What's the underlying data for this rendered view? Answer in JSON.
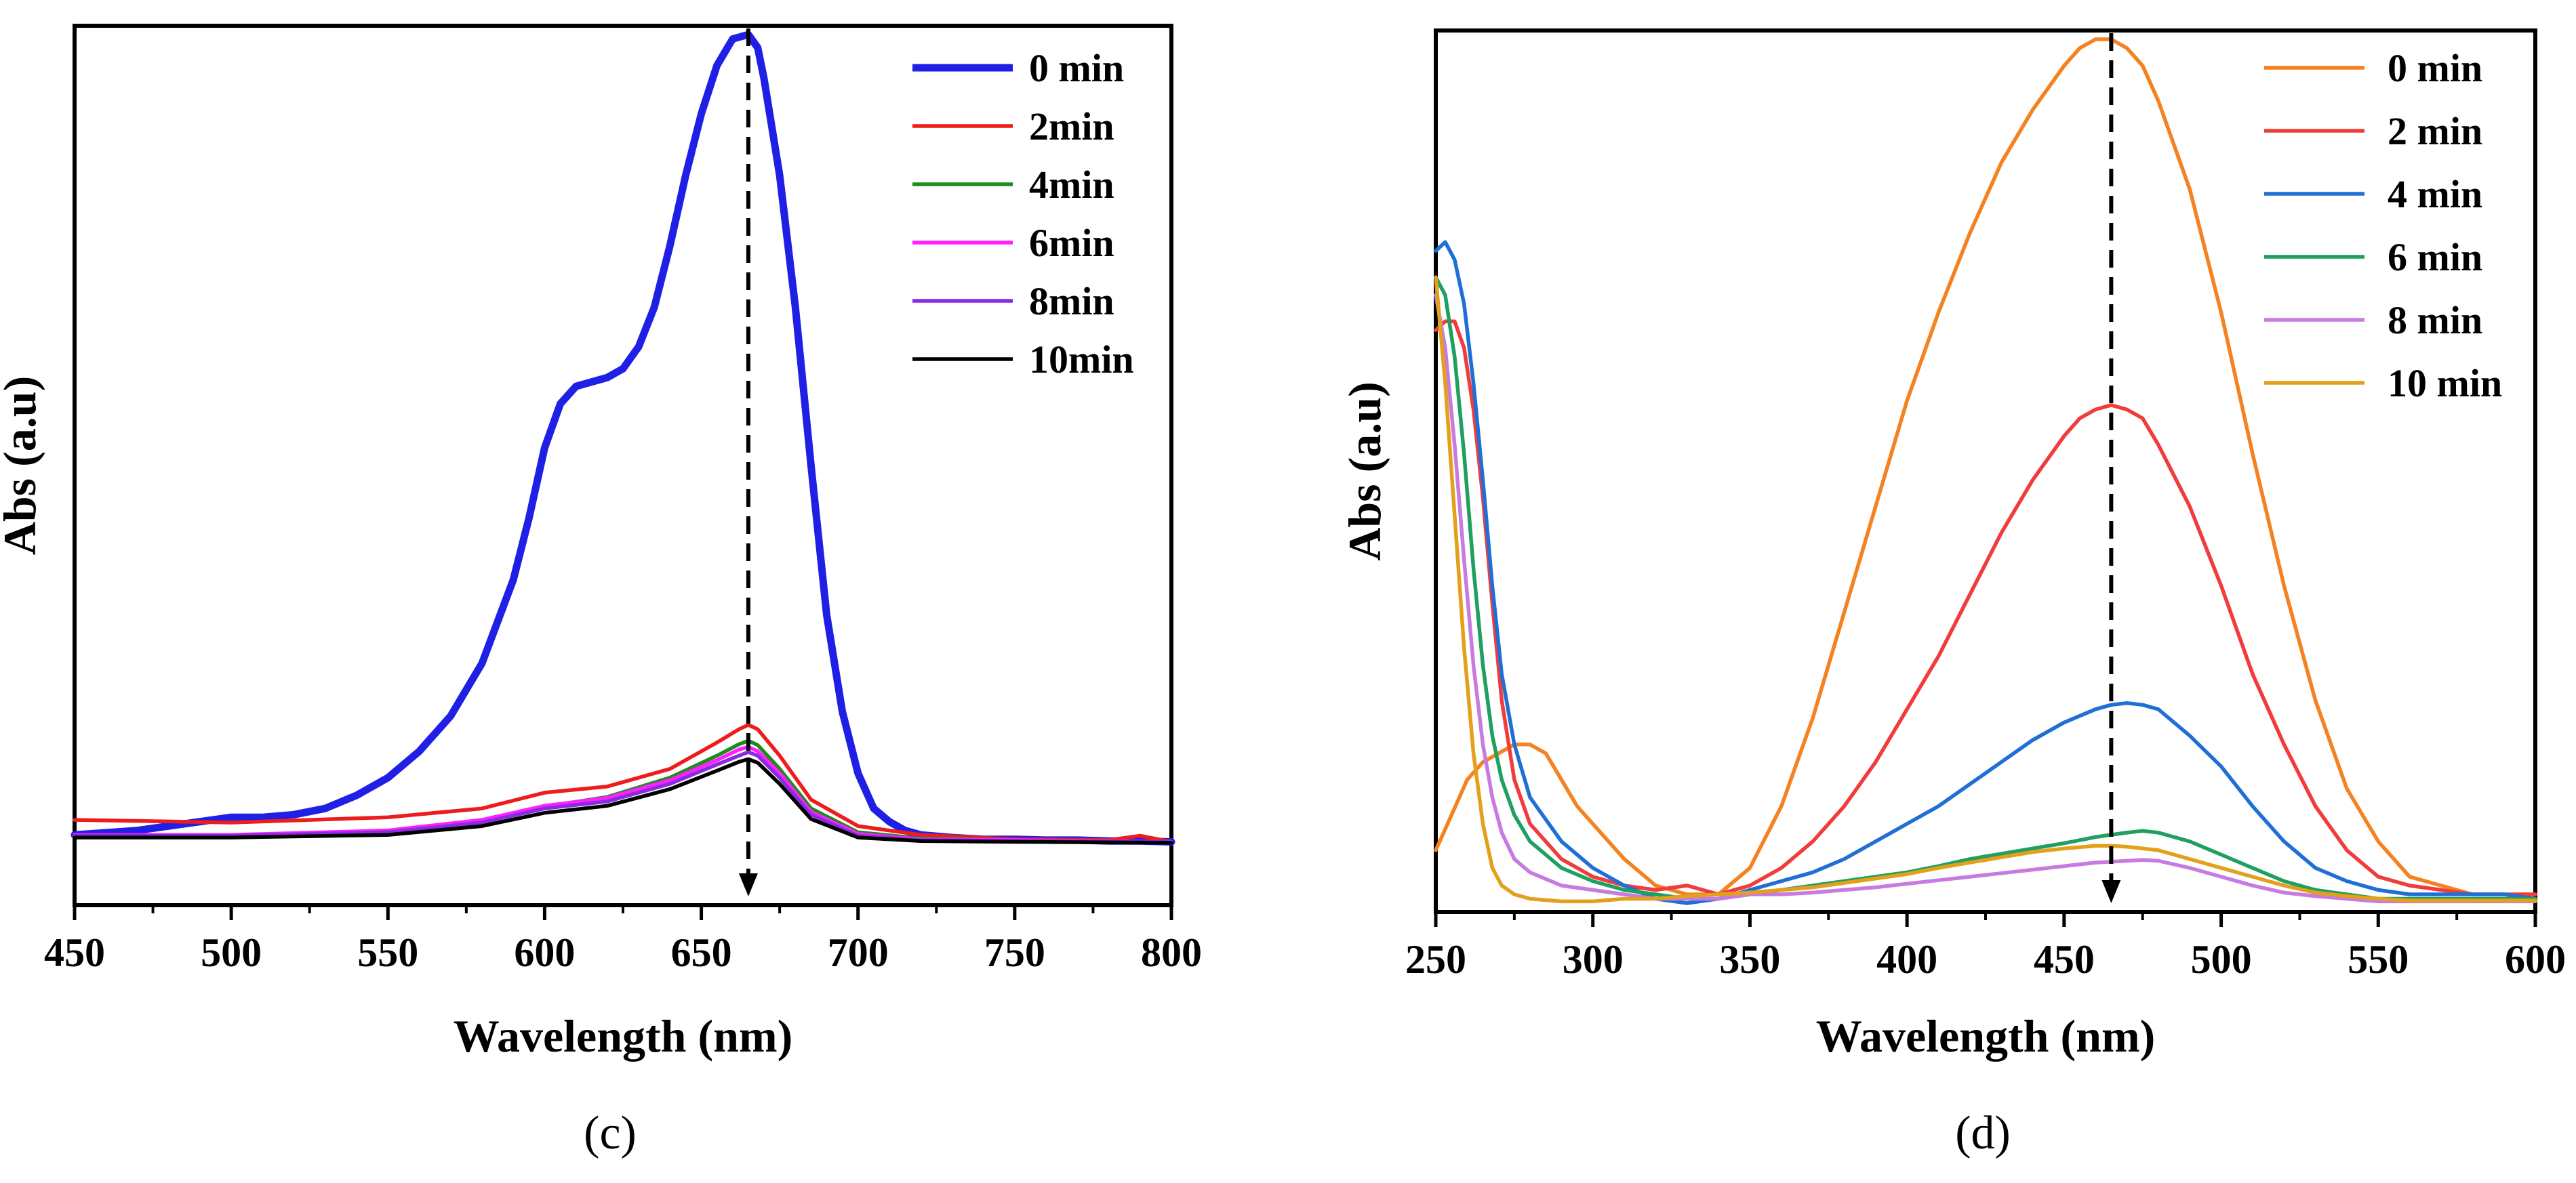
{
  "chart_data": [
    {
      "type": "line",
      "panel_label": "(c)",
      "xlabel": "Wavelength (nm)",
      "ylabel": "Abs (a.u)",
      "xlim": [
        450,
        800
      ],
      "ylim": [
        0,
        1.0
      ],
      "xticks": [
        450,
        500,
        550,
        600,
        650,
        700,
        750,
        800
      ],
      "yticks_shown": false,
      "legend_position": "top-right",
      "annotation": "dashed downward arrow at 665 nm",
      "arrow_x": 665,
      "arrow_y_from": 0.99,
      "arrow_y_to": 0.01,
      "series": [
        {
          "name": "0 min",
          "color": "#1f1fe6",
          "width": "thick",
          "x": [
            450,
            470,
            490,
            500,
            510,
            520,
            530,
            540,
            550,
            560,
            570,
            580,
            590,
            595,
            600,
            605,
            610,
            615,
            620,
            625,
            630,
            635,
            640,
            645,
            650,
            655,
            660,
            665,
            668,
            670,
            675,
            680,
            685,
            690,
            695,
            700,
            705,
            710,
            715,
            720,
            730,
            740,
            750,
            760,
            770,
            780,
            790,
            800
          ],
          "y": [
            0.08,
            0.085,
            0.095,
            0.1,
            0.1,
            0.103,
            0.11,
            0.125,
            0.145,
            0.175,
            0.215,
            0.275,
            0.37,
            0.44,
            0.52,
            0.57,
            0.59,
            0.595,
            0.6,
            0.61,
            0.635,
            0.68,
            0.75,
            0.83,
            0.9,
            0.955,
            0.985,
            0.99,
            0.975,
            0.94,
            0.83,
            0.68,
            0.5,
            0.33,
            0.22,
            0.15,
            0.11,
            0.095,
            0.085,
            0.08,
            0.077,
            0.075,
            0.075,
            0.074,
            0.074,
            0.073,
            0.073,
            0.072
          ]
        },
        {
          "name": "2min",
          "color": "#ee1c1c",
          "width": "thin",
          "x": [
            450,
            500,
            550,
            580,
            600,
            620,
            640,
            655,
            662,
            665,
            668,
            675,
            685,
            700,
            720,
            750,
            780,
            790,
            800
          ],
          "y": [
            0.097,
            0.094,
            0.1,
            0.11,
            0.128,
            0.135,
            0.155,
            0.185,
            0.2,
            0.205,
            0.2,
            0.17,
            0.12,
            0.09,
            0.08,
            0.075,
            0.074,
            0.079,
            0.072
          ]
        },
        {
          "name": "4min",
          "color": "#1f8a1f",
          "width": "thin",
          "x": [
            450,
            500,
            550,
            580,
            600,
            620,
            640,
            655,
            662,
            665,
            668,
            675,
            685,
            700,
            720,
            750,
            800
          ],
          "y": [
            0.078,
            0.078,
            0.083,
            0.095,
            0.112,
            0.123,
            0.145,
            0.17,
            0.183,
            0.187,
            0.182,
            0.155,
            0.11,
            0.083,
            0.076,
            0.074,
            0.072
          ]
        },
        {
          "name": "6min",
          "color": "#ff1fff",
          "width": "thin",
          "x": [
            450,
            500,
            550,
            580,
            600,
            620,
            640,
            655,
            662,
            665,
            668,
            675,
            685,
            700,
            720,
            750,
            800
          ],
          "y": [
            0.08,
            0.08,
            0.085,
            0.097,
            0.113,
            0.122,
            0.142,
            0.165,
            0.177,
            0.18,
            0.175,
            0.15,
            0.106,
            0.081,
            0.075,
            0.074,
            0.072
          ]
        },
        {
          "name": "8min",
          "color": "#8a2be2",
          "width": "thin",
          "x": [
            450,
            500,
            550,
            580,
            600,
            620,
            640,
            655,
            662,
            665,
            668,
            675,
            685,
            700,
            720,
            750,
            800
          ],
          "y": [
            0.079,
            0.079,
            0.083,
            0.094,
            0.11,
            0.118,
            0.138,
            0.16,
            0.17,
            0.174,
            0.17,
            0.145,
            0.103,
            0.079,
            0.074,
            0.073,
            0.072
          ]
        },
        {
          "name": "10min",
          "color": "#000000",
          "width": "thin",
          "x": [
            450,
            500,
            550,
            580,
            600,
            620,
            640,
            655,
            662,
            665,
            668,
            675,
            685,
            700,
            720,
            750,
            800
          ],
          "y": [
            0.077,
            0.077,
            0.08,
            0.09,
            0.105,
            0.113,
            0.132,
            0.153,
            0.163,
            0.166,
            0.162,
            0.138,
            0.098,
            0.077,
            0.073,
            0.072,
            0.071
          ]
        }
      ]
    },
    {
      "type": "line",
      "panel_label": "(d)",
      "xlabel": "Wavelength (nm)",
      "ylabel": "Abs (a.u)",
      "xlim": [
        250,
        600
      ],
      "ylim": [
        0,
        1.0
      ],
      "xticks": [
        250,
        300,
        350,
        400,
        450,
        500,
        550,
        600
      ],
      "yticks_shown": false,
      "legend_position": "top-right",
      "annotation": "dashed downward arrow at 465 nm",
      "arrow_x": 465,
      "arrow_y_from": 0.99,
      "arrow_y_to": 0.01,
      "series": [
        {
          "name": "0 min",
          "color": "#f58220",
          "width": "thin",
          "x": [
            250,
            255,
            260,
            265,
            270,
            275,
            280,
            285,
            290,
            295,
            300,
            310,
            320,
            330,
            340,
            350,
            360,
            370,
            380,
            390,
            400,
            410,
            420,
            430,
            440,
            450,
            455,
            460,
            465,
            470,
            475,
            480,
            490,
            500,
            510,
            520,
            530,
            540,
            550,
            560,
            570,
            580,
            590,
            600
          ],
          "y": [
            0.07,
            0.11,
            0.15,
            0.17,
            0.18,
            0.19,
            0.19,
            0.18,
            0.15,
            0.12,
            0.1,
            0.06,
            0.03,
            0.02,
            0.02,
            0.05,
            0.12,
            0.22,
            0.34,
            0.46,
            0.58,
            0.68,
            0.77,
            0.85,
            0.91,
            0.96,
            0.98,
            0.99,
            0.99,
            0.98,
            0.96,
            0.92,
            0.82,
            0.68,
            0.52,
            0.37,
            0.24,
            0.14,
            0.08,
            0.04,
            0.03,
            0.02,
            0.02,
            0.02
          ]
        },
        {
          "name": "2 min",
          "color": "#f03c3c",
          "width": "thin",
          "x": [
            250,
            253,
            256,
            259,
            262,
            265,
            268,
            271,
            275,
            280,
            290,
            300,
            310,
            320,
            330,
            340,
            350,
            360,
            370,
            380,
            390,
            400,
            410,
            420,
            430,
            440,
            450,
            455,
            460,
            465,
            470,
            475,
            480,
            490,
            500,
            510,
            520,
            530,
            540,
            550,
            560,
            570,
            580,
            590,
            600
          ],
          "y": [
            0.66,
            0.67,
            0.67,
            0.64,
            0.57,
            0.47,
            0.35,
            0.24,
            0.15,
            0.1,
            0.06,
            0.04,
            0.03,
            0.025,
            0.03,
            0.02,
            0.03,
            0.05,
            0.08,
            0.12,
            0.17,
            0.23,
            0.29,
            0.36,
            0.43,
            0.49,
            0.54,
            0.56,
            0.57,
            0.575,
            0.57,
            0.56,
            0.53,
            0.46,
            0.37,
            0.27,
            0.19,
            0.12,
            0.07,
            0.04,
            0.03,
            0.025,
            0.02,
            0.02,
            0.02
          ]
        },
        {
          "name": "4 min",
          "color": "#1f6fd6",
          "width": "thin",
          "x": [
            250,
            253,
            256,
            259,
            262,
            265,
            268,
            271,
            275,
            280,
            290,
            300,
            310,
            320,
            330,
            340,
            350,
            360,
            370,
            380,
            390,
            400,
            410,
            420,
            430,
            440,
            450,
            460,
            465,
            470,
            475,
            480,
            490,
            500,
            510,
            520,
            530,
            540,
            550,
            560,
            570,
            580,
            590,
            600
          ],
          "y": [
            0.75,
            0.76,
            0.74,
            0.69,
            0.6,
            0.49,
            0.37,
            0.27,
            0.19,
            0.13,
            0.08,
            0.05,
            0.03,
            0.015,
            0.01,
            0.015,
            0.025,
            0.035,
            0.045,
            0.06,
            0.08,
            0.1,
            0.12,
            0.145,
            0.17,
            0.195,
            0.215,
            0.23,
            0.235,
            0.237,
            0.235,
            0.23,
            0.2,
            0.165,
            0.12,
            0.08,
            0.05,
            0.035,
            0.025,
            0.02,
            0.02,
            0.02,
            0.02,
            0.015
          ]
        },
        {
          "name": "6 min",
          "color": "#1fa060",
          "width": "thin",
          "x": [
            250,
            253,
            256,
            259,
            262,
            265,
            268,
            271,
            275,
            280,
            290,
            300,
            310,
            320,
            330,
            340,
            350,
            360,
            370,
            380,
            390,
            400,
            410,
            420,
            430,
            440,
            450,
            460,
            470,
            475,
            480,
            490,
            500,
            510,
            520,
            530,
            540,
            550,
            560,
            570,
            580,
            590,
            600
          ],
          "y": [
            0.72,
            0.7,
            0.63,
            0.52,
            0.39,
            0.28,
            0.2,
            0.15,
            0.11,
            0.08,
            0.05,
            0.035,
            0.025,
            0.02,
            0.015,
            0.015,
            0.02,
            0.025,
            0.03,
            0.035,
            0.04,
            0.045,
            0.052,
            0.06,
            0.066,
            0.072,
            0.078,
            0.085,
            0.09,
            0.092,
            0.09,
            0.08,
            0.065,
            0.05,
            0.035,
            0.025,
            0.02,
            0.015,
            0.015,
            0.015,
            0.015,
            0.015,
            0.015
          ]
        },
        {
          "name": "8 min",
          "color": "#c77be0",
          "width": "thin",
          "x": [
            250,
            253,
            256,
            259,
            262,
            265,
            268,
            271,
            275,
            280,
            290,
            300,
            310,
            320,
            330,
            340,
            350,
            360,
            370,
            380,
            390,
            400,
            410,
            420,
            430,
            440,
            450,
            460,
            470,
            475,
            480,
            490,
            500,
            510,
            520,
            530,
            540,
            550,
            560,
            570,
            580,
            590,
            600
          ],
          "y": [
            0.7,
            0.64,
            0.53,
            0.4,
            0.28,
            0.19,
            0.13,
            0.09,
            0.06,
            0.045,
            0.03,
            0.025,
            0.02,
            0.015,
            0.015,
            0.015,
            0.02,
            0.02,
            0.022,
            0.025,
            0.028,
            0.032,
            0.036,
            0.04,
            0.044,
            0.048,
            0.052,
            0.056,
            0.058,
            0.059,
            0.058,
            0.05,
            0.04,
            0.03,
            0.022,
            0.018,
            0.015,
            0.012,
            0.012,
            0.012,
            0.012,
            0.012,
            0.012
          ]
        },
        {
          "name": "10 min",
          "color": "#e3a01b",
          "width": "thin",
          "x": [
            250,
            253,
            256,
            259,
            262,
            265,
            268,
            271,
            275,
            280,
            290,
            300,
            310,
            320,
            330,
            340,
            350,
            360,
            370,
            380,
            390,
            400,
            410,
            420,
            430,
            440,
            450,
            460,
            465,
            470,
            480,
            490,
            500,
            510,
            520,
            530,
            540,
            550,
            560,
            570,
            580,
            590,
            600
          ],
          "y": [
            0.72,
            0.6,
            0.45,
            0.3,
            0.18,
            0.1,
            0.05,
            0.03,
            0.02,
            0.015,
            0.012,
            0.012,
            0.015,
            0.015,
            0.018,
            0.02,
            0.022,
            0.025,
            0.028,
            0.033,
            0.038,
            0.043,
            0.05,
            0.056,
            0.062,
            0.068,
            0.072,
            0.075,
            0.075,
            0.074,
            0.07,
            0.06,
            0.05,
            0.04,
            0.03,
            0.022,
            0.018,
            0.015,
            0.013,
            0.013,
            0.013,
            0.013,
            0.013
          ]
        }
      ]
    }
  ]
}
